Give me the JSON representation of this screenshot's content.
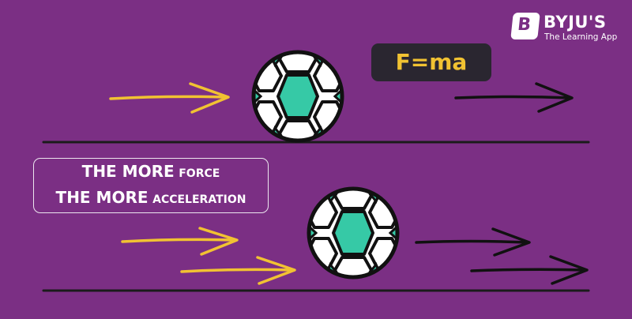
{
  "logo": {
    "mark": "B",
    "name": "BYJU'S",
    "tagline": "The Learning App"
  },
  "formula": "F=ma",
  "message": {
    "line1_emphasis": "THE MORE",
    "line1_rest": "FORCE",
    "line2_emphasis": "THE MORE",
    "line2_rest": "ACCELERATION"
  },
  "colors": {
    "background": "#7b2f84",
    "force_arrow": "#f1c232",
    "motion_arrow": "#111111",
    "ground": "#1b1b1b",
    "ball_white": "#ffffff",
    "ball_teal": "#36c9a6",
    "ball_outline": "#111111",
    "formula_box": "#2a2630",
    "formula_text": "#f1c232"
  },
  "scenes": [
    {
      "name": "single-force",
      "force_arrow_count": 1,
      "motion_arrow_count": 1
    },
    {
      "name": "double-force",
      "force_arrow_count": 2,
      "motion_arrow_count": 2
    }
  ]
}
